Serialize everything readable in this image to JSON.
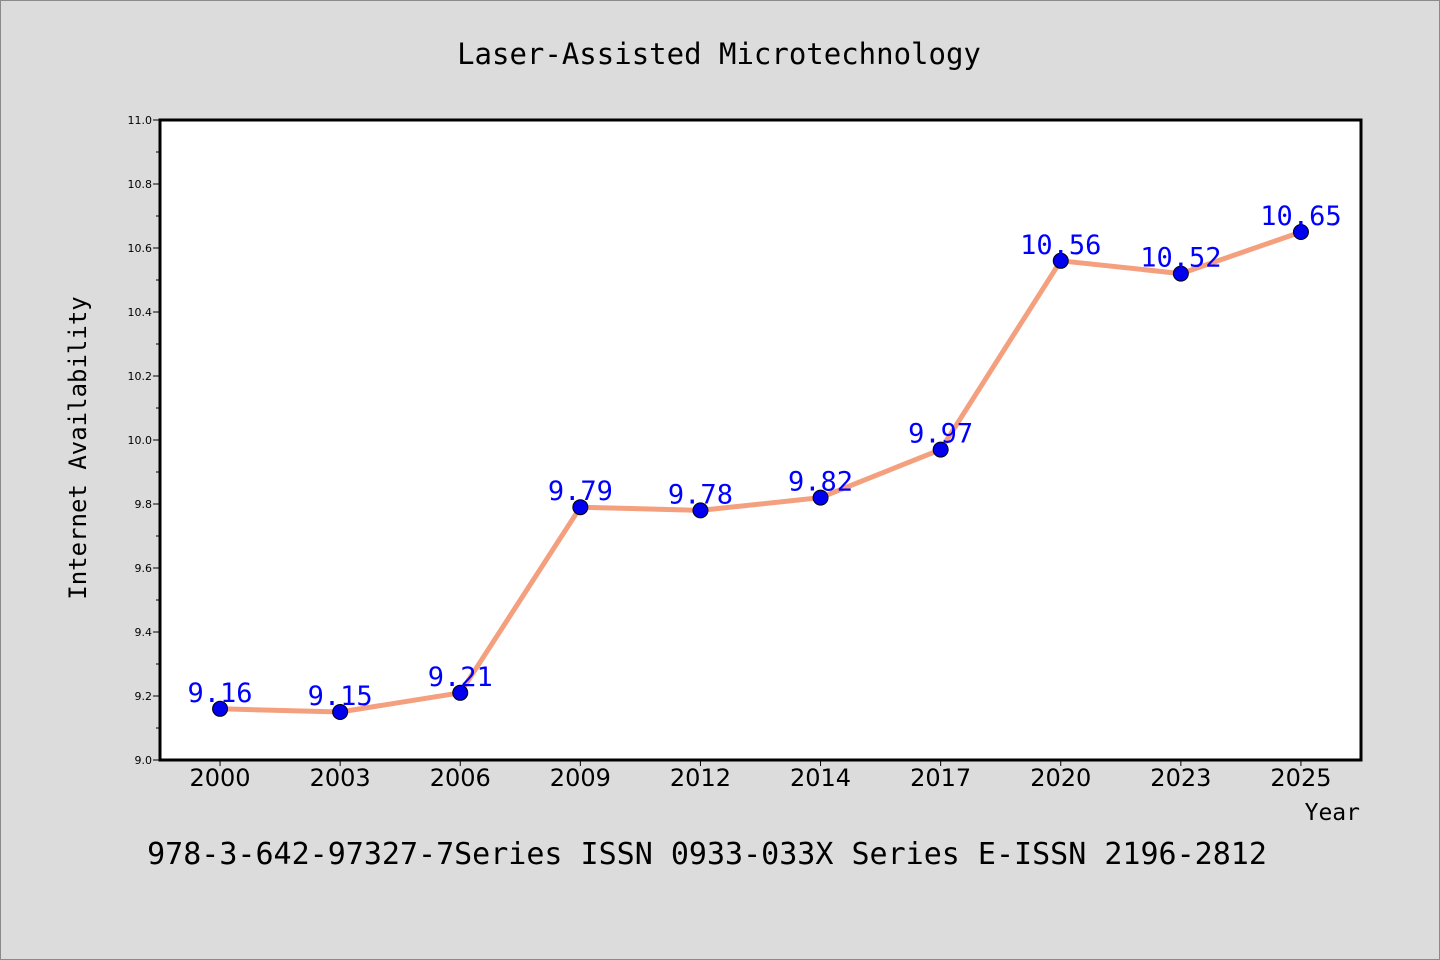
{
  "colors": {
    "background": "#dcdcdc",
    "plot_background": "#ffffff",
    "line": "#f4a07e",
    "marker": "#0000ee",
    "data_label": "#0000ff",
    "text": "#000000"
  },
  "footer_text": "978-3-642-97327-7Series ISSN 0933-033X Series E-ISSN 2196-2812",
  "chart_data": {
    "type": "line",
    "title": "Laser-Assisted Microtechnology",
    "xlabel": "Year",
    "ylabel": "Internet Availability",
    "categories": [
      "2000",
      "2003",
      "2006",
      "2009",
      "2012",
      "2014",
      "2017",
      "2020",
      "2023",
      "2025"
    ],
    "series": [
      {
        "values": [
          9.16,
          9.15,
          9.21,
          9.79,
          9.78,
          9.82,
          9.97,
          10.56,
          10.52,
          10.65
        ],
        "data_labels": [
          "9.16",
          "9.15",
          "9.21",
          "9.79",
          "9.78",
          "9.82",
          "9.97",
          "10.56",
          "10.52",
          "10.65"
        ]
      }
    ],
    "ylim": [
      9.0,
      11.0
    ],
    "yticks": [
      "9.0",
      "9.2",
      "9.4",
      "9.6",
      "9.8",
      "10.0",
      "10.2",
      "10.4",
      "10.6",
      "10.8",
      "11.0"
    ],
    "grid": false,
    "legend": "none"
  }
}
